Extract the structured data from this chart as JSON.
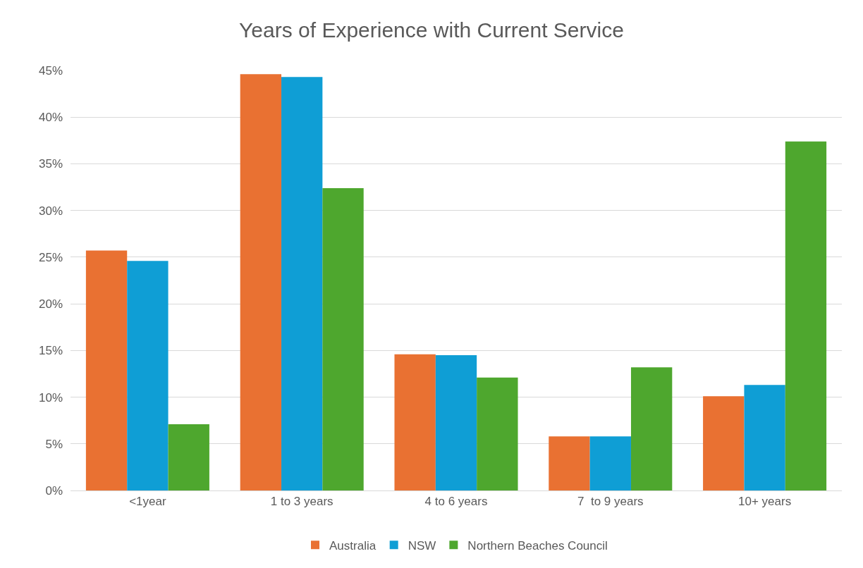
{
  "chart_data": {
    "type": "bar",
    "title": "Years of Experience with Current Service",
    "categories": [
      "<1year",
      "1 to 3 years",
      "4 to 6 years",
      "7  to 9 years",
      "10+ years"
    ],
    "series": [
      {
        "name": "Australia",
        "color": "#e97132",
        "values": [
          25.7,
          44.6,
          14.6,
          5.8,
          10.1
        ]
      },
      {
        "name": "NSW",
        "color": "#0f9ed5",
        "values": [
          24.6,
          44.3,
          14.5,
          5.8,
          11.3
        ]
      },
      {
        "name": "Northern Beaches Council",
        "color": "#4ea72e",
        "values": [
          7.1,
          32.4,
          12.1,
          13.2,
          37.4
        ]
      }
    ],
    "ylim": [
      0,
      45
    ],
    "yticks": [
      {
        "value": 0,
        "label": "0%"
      },
      {
        "value": 5,
        "label": "5%"
      },
      {
        "value": 10,
        "label": "10%"
      },
      {
        "value": 15,
        "label": "15%"
      },
      {
        "value": 20,
        "label": "20%"
      },
      {
        "value": 25,
        "label": "25%"
      },
      {
        "value": 30,
        "label": "30%"
      },
      {
        "value": 35,
        "label": "35%"
      },
      {
        "value": 40,
        "label": "40%"
      },
      {
        "value": 45,
        "label": "45%"
      }
    ],
    "grid": "y",
    "legend": "bottom"
  }
}
